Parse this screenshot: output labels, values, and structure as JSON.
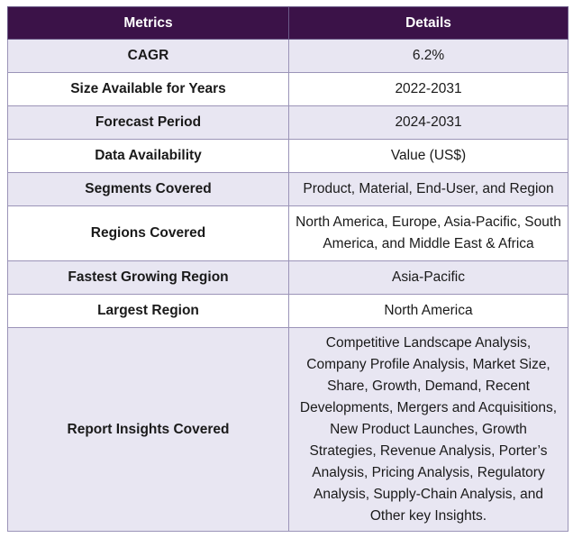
{
  "header": {
    "metrics": "Metrics",
    "details": "Details"
  },
  "rows": [
    {
      "metric": "CAGR",
      "detail": "6.2%"
    },
    {
      "metric": "Size Available for Years",
      "detail": "2022-2031"
    },
    {
      "metric": "Forecast Period",
      "detail": "2024-2031"
    },
    {
      "metric": "Data Availability",
      "detail": "Value (US$)"
    },
    {
      "metric": "Segments Covered",
      "detail": "Product, Material, End-User, and Region"
    },
    {
      "metric": "Regions Covered",
      "detail": "North America, Europe, Asia-Pacific, South America, and Middle East & Africa"
    },
    {
      "metric": "Fastest Growing Region",
      "detail": "Asia-Pacific"
    },
    {
      "metric": "Largest Region",
      "detail": "North America"
    },
    {
      "metric": "Report Insights Covered",
      "detail": "Competitive Landscape Analysis, Company Profile Analysis, Market Size, Share, Growth, Demand, Recent Developments, Mergers and Acquisitions, New Product Launches, Growth Strategies, Revenue Analysis, Porter’s Analysis, Pricing Analysis, Regulatory Analysis, Supply-Chain Analysis, and Other key Insights."
    }
  ]
}
